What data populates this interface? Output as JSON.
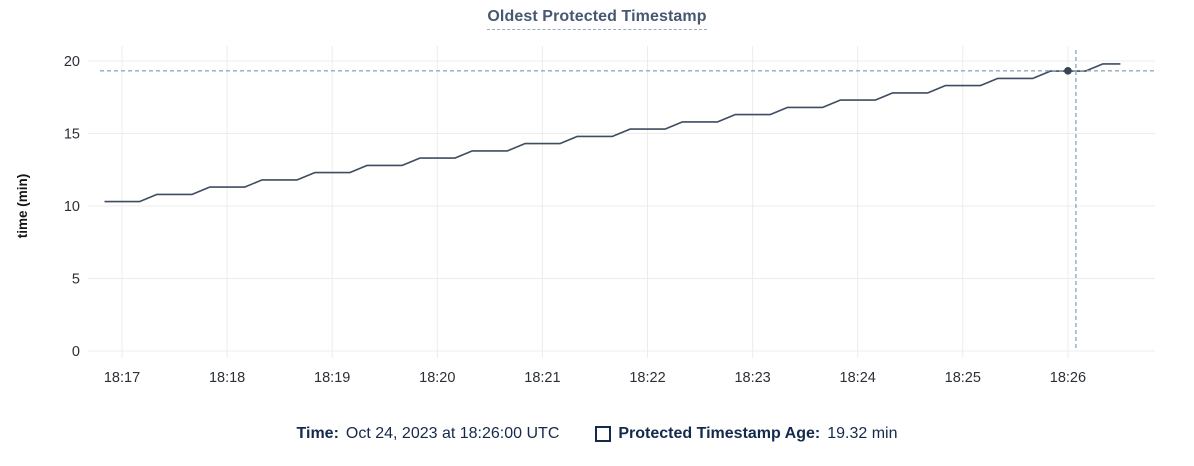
{
  "title": "Oldest Protected Timestamp",
  "y_axis": {
    "label": "time (min)"
  },
  "legend": {
    "time_label": "Time:",
    "time_value": "Oct 24, 2023 at 18:26:00 UTC",
    "series_label": "Protected Timestamp Age:",
    "series_value": "19.32 min"
  },
  "colors": {
    "line": "#3e4d62",
    "dot": "#394455",
    "grid": "#ececec",
    "crosshair": "#92abbc",
    "title": "#475872",
    "axis_text": "#2b2f36",
    "legend_text": "#142a4c"
  },
  "chart_data": {
    "type": "line",
    "title": "Oldest Protected Timestamp",
    "xlabel": "",
    "ylabel": "time (min)",
    "ylim": [
      0,
      20
    ],
    "y_ticks": [
      0,
      5,
      10,
      15,
      20
    ],
    "x_ticks": [
      "18:17",
      "18:18",
      "18:19",
      "18:20",
      "18:21",
      "18:22",
      "18:23",
      "18:24",
      "18:25",
      "18:26"
    ],
    "grid": true,
    "legend_position": "bottom",
    "line_style": "step-ramp staircase, rising ~1 min per min",
    "series": [
      {
        "name": "Protected Timestamp Age",
        "unit": "min",
        "color": "#3e4d62",
        "points": [
          [
            "18:16:50",
            10.3
          ],
          [
            "18:17:10",
            10.3
          ],
          [
            "18:17:20",
            10.8
          ],
          [
            "18:17:40",
            10.8
          ],
          [
            "18:17:50",
            11.3
          ],
          [
            "18:18:10",
            11.3
          ],
          [
            "18:18:20",
            11.8
          ],
          [
            "18:18:40",
            11.8
          ],
          [
            "18:18:50",
            12.3
          ],
          [
            "18:19:10",
            12.3
          ],
          [
            "18:19:20",
            12.8
          ],
          [
            "18:19:40",
            12.8
          ],
          [
            "18:19:50",
            13.3
          ],
          [
            "18:20:10",
            13.3
          ],
          [
            "18:20:20",
            13.8
          ],
          [
            "18:20:40",
            13.8
          ],
          [
            "18:20:50",
            14.3
          ],
          [
            "18:21:10",
            14.3
          ],
          [
            "18:21:20",
            14.8
          ],
          [
            "18:21:40",
            14.8
          ],
          [
            "18:21:50",
            15.3
          ],
          [
            "18:22:10",
            15.3
          ],
          [
            "18:22:20",
            15.8
          ],
          [
            "18:22:40",
            15.8
          ],
          [
            "18:22:50",
            16.3
          ],
          [
            "18:23:10",
            16.3
          ],
          [
            "18:23:20",
            16.8
          ],
          [
            "18:23:40",
            16.8
          ],
          [
            "18:23:50",
            17.3
          ],
          [
            "18:24:10",
            17.3
          ],
          [
            "18:24:20",
            17.8
          ],
          [
            "18:24:40",
            17.8
          ],
          [
            "18:24:50",
            18.3
          ],
          [
            "18:25:10",
            18.3
          ],
          [
            "18:25:20",
            18.8
          ],
          [
            "18:25:40",
            18.8
          ],
          [
            "18:25:50",
            19.3
          ],
          [
            "18:26:10",
            19.3
          ],
          [
            "18:26:20",
            19.8
          ],
          [
            "18:26:30",
            19.8
          ]
        ]
      }
    ],
    "hover": {
      "x": "18:26:00",
      "value": 19.32
    }
  }
}
